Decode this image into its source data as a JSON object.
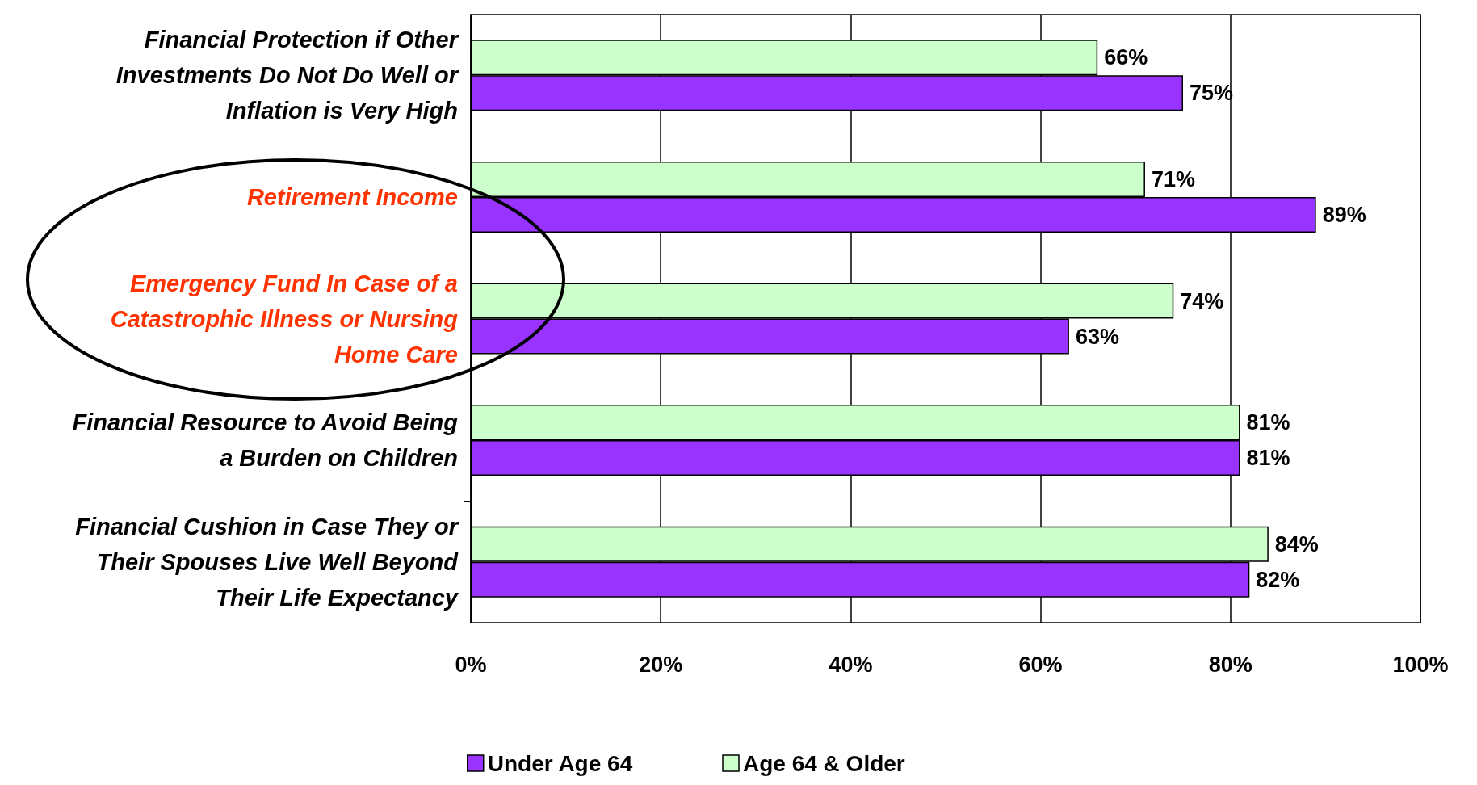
{
  "chart_data": {
    "type": "bar",
    "orientation": "horizontal",
    "categories": [
      "Financial Protection if Other Investments Do Not Do Well or Inflation is Very High",
      "Retirement Income",
      "Emergency Fund In Case of a Catastrophic Illness or Nursing Home Care",
      "Financial Resource to Avoid Being a Burden on Children",
      "Financial Cushion in Case They or Their Spouses Live Well Beyond Their Life Expectancy"
    ],
    "series": [
      {
        "name": "Under Age 64",
        "color": "#9933ff",
        "values": [
          75,
          89,
          63,
          81,
          82
        ],
        "value_labels": [
          "75%",
          "89%",
          "63%",
          "81%",
          "82%"
        ]
      },
      {
        "name": "Age 64 & Older",
        "color": "#ccffcc",
        "values": [
          66,
          71,
          74,
          81,
          84
        ],
        "value_labels": [
          "66%",
          "71%",
          "74%",
          "81%",
          "84%"
        ]
      }
    ],
    "xlim": [
      0,
      100
    ],
    "xticks": [
      {
        "value": 0,
        "label": "0%"
      },
      {
        "value": 20,
        "label": "20%"
      },
      {
        "value": 40,
        "label": "40%"
      },
      {
        "value": 60,
        "label": "60%"
      },
      {
        "value": 80,
        "label": "80%"
      },
      {
        "value": 100,
        "label": "100%"
      }
    ],
    "grid": "x",
    "legend": "bottom"
  }
}
